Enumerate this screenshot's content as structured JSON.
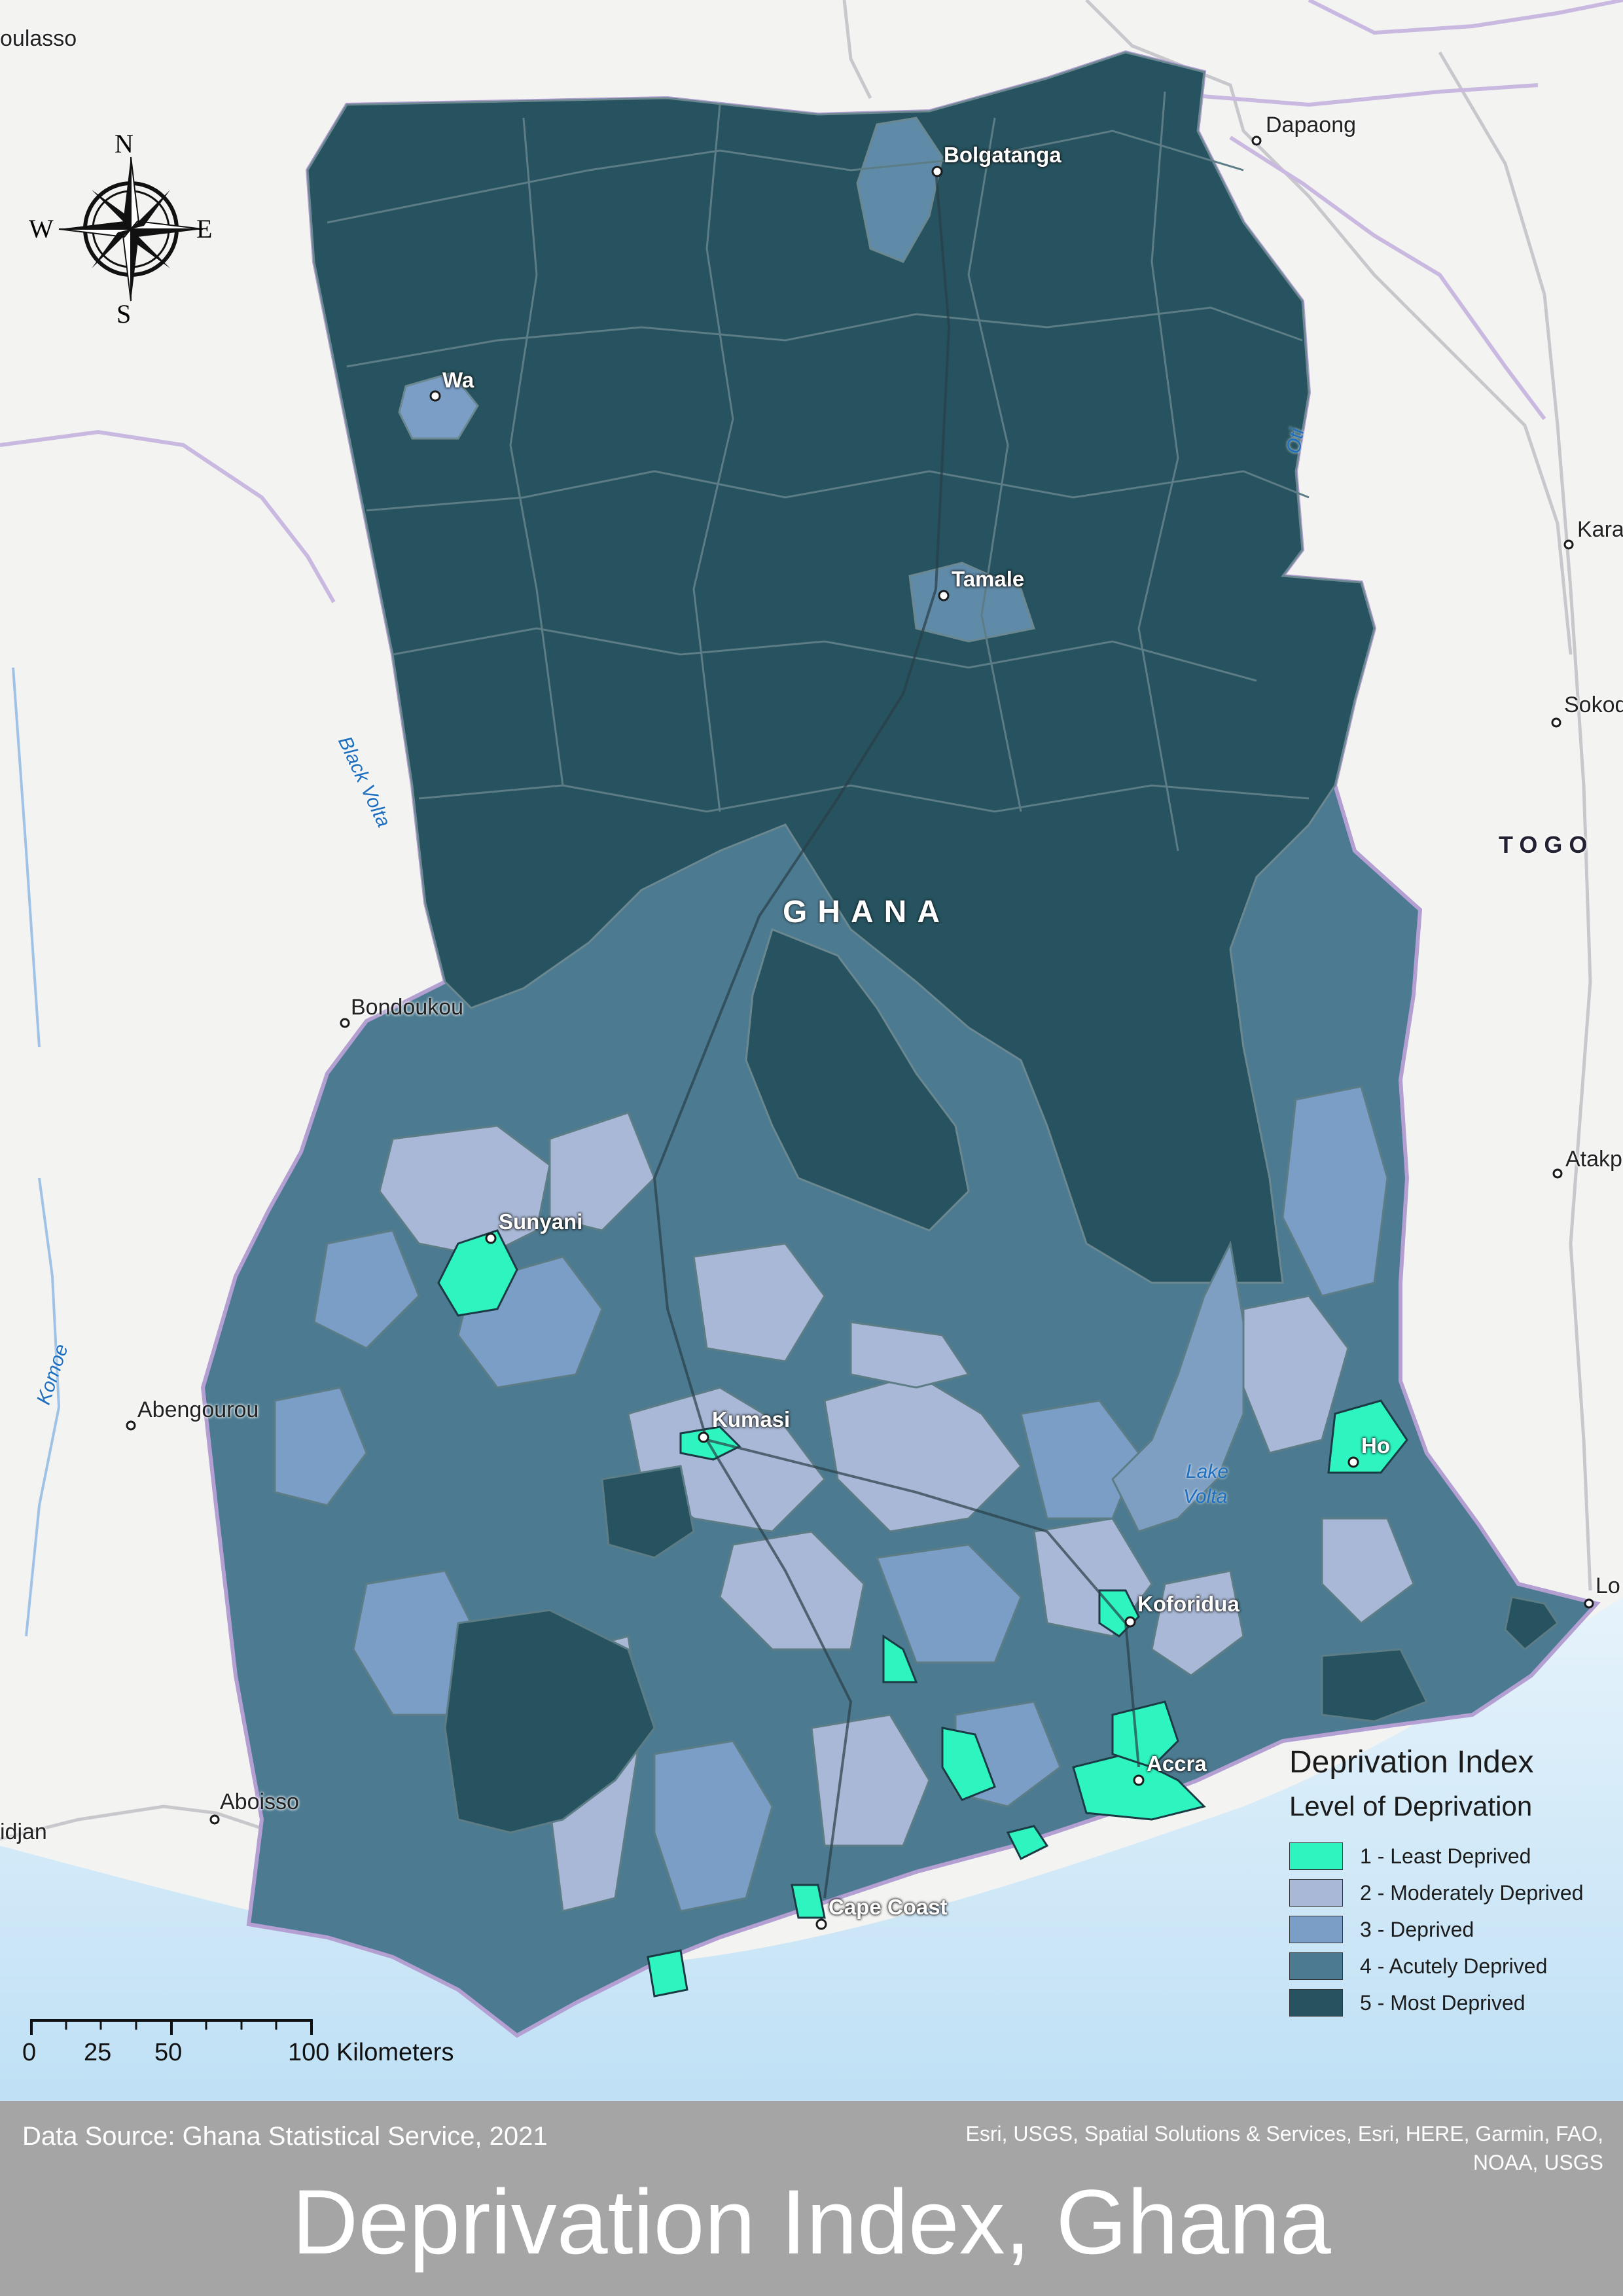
{
  "title": "Deprivation Index, Ghana",
  "data_source": "Data Source: Ghana Statistical Service, 2021",
  "credits": "Esri, USGS, Spatial Solutions & Services, Esri, HERE, Garmin, FAO, NOAA, USGS",
  "legend": {
    "title": "Deprivation Index",
    "subtitle": "Level of Deprivation",
    "items": [
      {
        "label": "1 - Least Deprived",
        "color": "#2ef5c0"
      },
      {
        "label": "2 - Moderately Deprived",
        "color": "#a9b8d6"
      },
      {
        "label": "3 - Deprived",
        "color": "#7b9ec7"
      },
      {
        "label": "4 - Acutely Deprived",
        "color": "#4c7a90"
      },
      {
        "label": "5 - Most Deprived",
        "color": "#26535f"
      }
    ]
  },
  "scale_bar": {
    "ticks": [
      "0",
      "25",
      "50",
      "100 Kilometers"
    ]
  },
  "compass": {
    "n": "N",
    "s": "S",
    "e": "E",
    "w": "W"
  },
  "map_labels": {
    "country": "GHANA",
    "neighbor_country": "TOGO",
    "cities": [
      "Bolgatanga",
      "Wa",
      "Tamale",
      "Sunyani",
      "Kumasi",
      "Ho",
      "Koforidua",
      "Accra",
      "Cape Coast"
    ],
    "external_places": [
      "oulasso",
      "Dapaong",
      "Kara",
      "Sokod",
      "Atakp",
      "Bondoukou",
      "Abengourou",
      "Aboisso",
      "idjan",
      "Lo"
    ],
    "water": [
      "Black Volta",
      "Oti",
      "Komoe",
      "Lake",
      "Volta"
    ]
  }
}
